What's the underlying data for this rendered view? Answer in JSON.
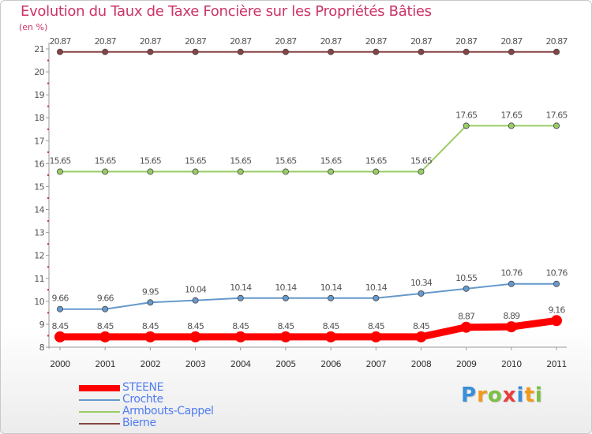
{
  "title": "Evolution du Taux de Taxe Foncière sur les Propriétés Bâties",
  "subtitle": "(en %)",
  "logo": {
    "letters": [
      "P",
      "r",
      "o",
      "x",
      "i",
      "t",
      "i"
    ],
    "colors": [
      "#3a8fd8",
      "#f19a1c",
      "#7bc043",
      "#e93d3d",
      "#3a8fd8",
      "#f19a1c",
      "#7bc043"
    ]
  },
  "chart_data": {
    "type": "line",
    "title": "Evolution du Taux de Taxe Foncière sur les Propriétés Bâties",
    "ylabel": "(en %)",
    "xlabel": "",
    "ylim": [
      8,
      21
    ],
    "yticks": [
      "8",
      "9",
      "10",
      "11",
      "12",
      "13",
      "14",
      "15",
      "16",
      "17",
      "18",
      "19",
      "20",
      "21"
    ],
    "categories": [
      "2000",
      "2001",
      "2002",
      "2003",
      "2004",
      "2005",
      "2006",
      "2007",
      "2008",
      "2009",
      "2010",
      "2011"
    ],
    "series": [
      {
        "name": "STEENE",
        "color": "#ff0000",
        "values": [
          8.45,
          8.45,
          8.45,
          8.45,
          8.45,
          8.45,
          8.45,
          8.45,
          8.45,
          8.87,
          8.89,
          9.16
        ],
        "labels": [
          "8.45",
          "8.45",
          "8.45",
          "8.45",
          "8.45",
          "8.45",
          "8.45",
          "8.45",
          "8.45",
          "8.87",
          "8.89",
          "9.16"
        ]
      },
      {
        "name": "Crochte",
        "color": "#6699cc",
        "values": [
          9.66,
          9.66,
          9.95,
          10.04,
          10.14,
          10.14,
          10.14,
          10.14,
          10.34,
          10.55,
          10.76,
          10.76
        ],
        "labels": [
          "9.66",
          "9.66",
          "9.95",
          "10.04",
          "10.14",
          "10.14",
          "10.14",
          "10.14",
          "10.34",
          "10.55",
          "10.76",
          "10.76"
        ]
      },
      {
        "name": "Armbouts-Cappel",
        "color": "#99cc66",
        "values": [
          15.65,
          15.65,
          15.65,
          15.65,
          15.65,
          15.65,
          15.65,
          15.65,
          15.65,
          17.65,
          17.65,
          17.65
        ],
        "labels": [
          "15.65",
          "15.65",
          "15.65",
          "15.65",
          "15.65",
          "15.65",
          "15.65",
          "15.65",
          "15.65",
          "17.65",
          "17.65",
          "17.65"
        ]
      },
      {
        "name": "Bierne",
        "color": "#884444",
        "values": [
          20.87,
          20.87,
          20.87,
          20.87,
          20.87,
          20.87,
          20.87,
          20.87,
          20.87,
          20.87,
          20.87,
          20.87
        ],
        "labels": [
          "20.87",
          "20.87",
          "20.87",
          "20.87",
          "20.87",
          "20.87",
          "20.87",
          "20.87",
          "20.87",
          "20.87",
          "20.87",
          "20.87"
        ]
      }
    ],
    "legend": [
      "STEENE",
      "Crochte",
      "Armbouts-Cappel",
      "Bierne"
    ]
  }
}
